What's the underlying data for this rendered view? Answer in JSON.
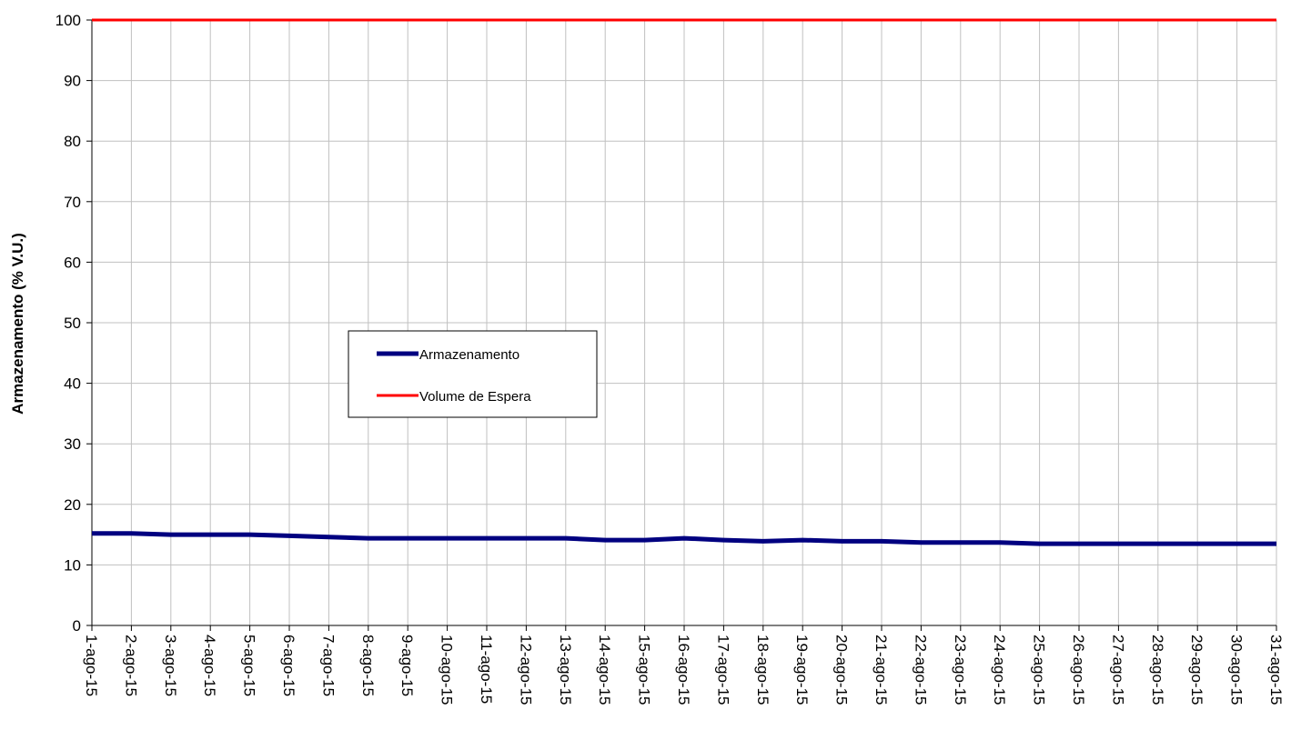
{
  "chart_data": {
    "type": "line",
    "title": "",
    "xlabel": "",
    "ylabel": "Armazenamento (% V.U.)",
    "ylim": [
      0,
      100
    ],
    "yticks": [
      "0",
      "10",
      "20",
      "30",
      "40",
      "50",
      "60",
      "70",
      "80",
      "90",
      "100"
    ],
    "grid": true,
    "legend_position": "center-left",
    "categories": [
      "1-ago-15",
      "2-ago-15",
      "3-ago-15",
      "4-ago-15",
      "5-ago-15",
      "6-ago-15",
      "7-ago-15",
      "8-ago-15",
      "9-ago-15",
      "10-ago-15",
      "11-ago-15",
      "12-ago-15",
      "13-ago-15",
      "14-ago-15",
      "15-ago-15",
      "16-ago-15",
      "17-ago-15",
      "18-ago-15",
      "19-ago-15",
      "20-ago-15",
      "21-ago-15",
      "22-ago-15",
      "23-ago-15",
      "24-ago-15",
      "25-ago-15",
      "26-ago-15",
      "27-ago-15",
      "28-ago-15",
      "29-ago-15",
      "30-ago-15",
      "31-ago-15"
    ],
    "series": [
      {
        "name": "Armazenamento",
        "color": "#000080",
        "values": [
          15.2,
          15.2,
          15.0,
          15.0,
          15.0,
          14.8,
          14.6,
          14.4,
          14.4,
          14.4,
          14.4,
          14.4,
          14.4,
          14.1,
          14.1,
          14.4,
          14.1,
          13.9,
          14.1,
          13.9,
          13.9,
          13.7,
          13.7,
          13.7,
          13.5,
          13.5,
          13.5,
          13.5,
          13.5,
          13.5,
          13.5
        ]
      },
      {
        "name": "Volume de Espera",
        "color": "#ff0000",
        "values": [
          100,
          100,
          100,
          100,
          100,
          100,
          100,
          100,
          100,
          100,
          100,
          100,
          100,
          100,
          100,
          100,
          100,
          100,
          100,
          100,
          100,
          100,
          100,
          100,
          100,
          100,
          100,
          100,
          100,
          100,
          100
        ]
      }
    ]
  }
}
